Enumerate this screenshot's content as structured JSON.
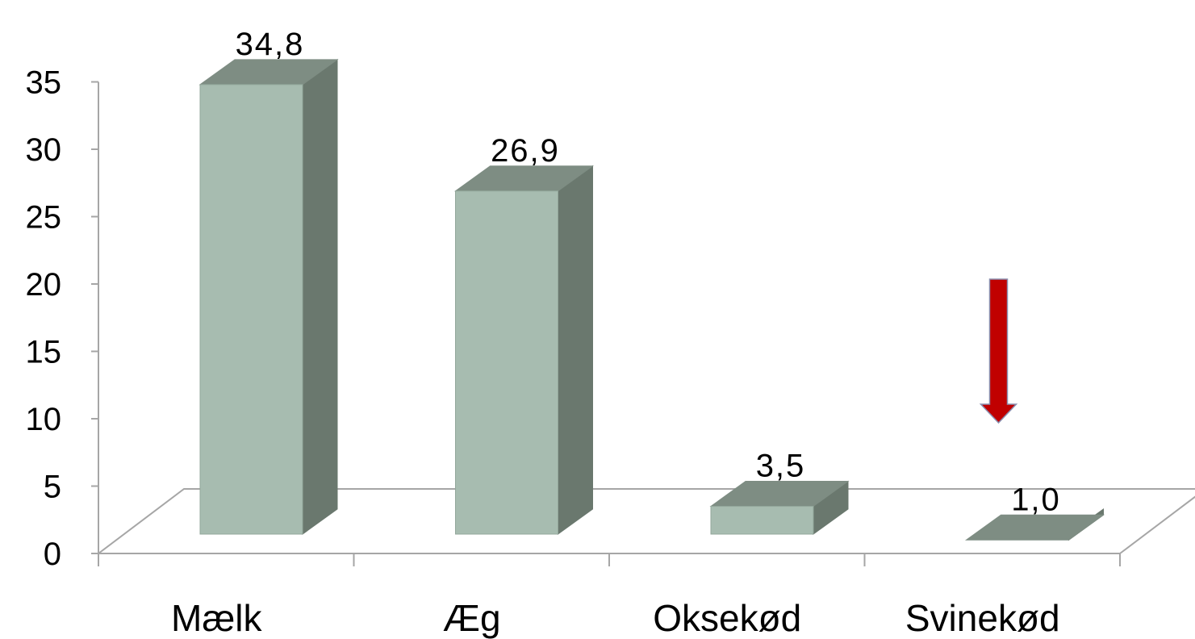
{
  "chart_data": {
    "type": "bar",
    "categories": [
      "Mælk",
      "Æg",
      "Oksekød",
      "Svinekød"
    ],
    "values": [
      34.8,
      26.9,
      3.5,
      1.0
    ],
    "data_labels": [
      "34,8",
      "26,9",
      "3,5",
      "1,0"
    ],
    "yticks": [
      "0",
      "5",
      "10",
      "15",
      "20",
      "25",
      "30",
      "35"
    ],
    "ylim": [
      0,
      35
    ],
    "title": "",
    "xlabel": "",
    "ylabel": "",
    "grid": false,
    "legend": "none",
    "style": "3d-column",
    "colors": {
      "bar_front": "#a7bcb0",
      "bar_side": "#6a786e",
      "bar_top": "#7e8d83",
      "axis": "#a6a6a6",
      "arrow": "#c00000"
    },
    "annotations": [
      {
        "type": "arrow",
        "direction": "down",
        "category": "Svinekød"
      }
    ]
  }
}
